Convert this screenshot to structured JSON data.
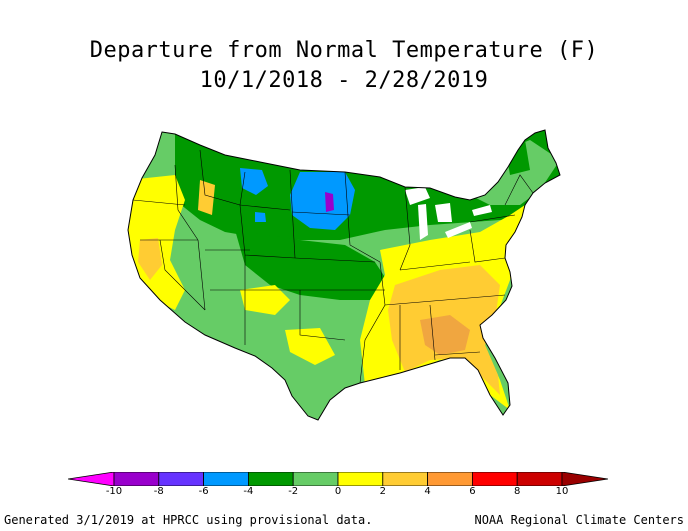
{
  "title": {
    "line1": "Departure from Normal Temperature (F)",
    "line2": "10/1/2018 - 2/28/2019"
  },
  "legend": {
    "ticks": [
      "-10",
      "-8",
      "-6",
      "-4",
      "-2",
      "0",
      "2",
      "4",
      "6",
      "8",
      "10"
    ],
    "colors": [
      "#ff00ff",
      "#9900cc",
      "#6633ff",
      "#0099ff",
      "#009900",
      "#66cc66",
      "#ffff00",
      "#ffcc33",
      "#ff9933",
      "#ff0000",
      "#cc0000",
      "#990000"
    ],
    "ends": [
      "less-than-arrow",
      "greater-than-arrow"
    ]
  },
  "map": {
    "subject": "contiguous-united-states",
    "palette": {
      "dark_green": "#009900",
      "green": "#66cc66",
      "yellow": "#ffff00",
      "gold": "#ffcc33",
      "orange": "#f0a640",
      "blue": "#0099ff",
      "purple": "#9900cc",
      "water": "#ffffff",
      "border": "#000000"
    }
  },
  "footer": {
    "left": "Generated 3/1/2019 at HPRCC using provisional data.",
    "right": "NOAA Regional Climate Centers"
  }
}
